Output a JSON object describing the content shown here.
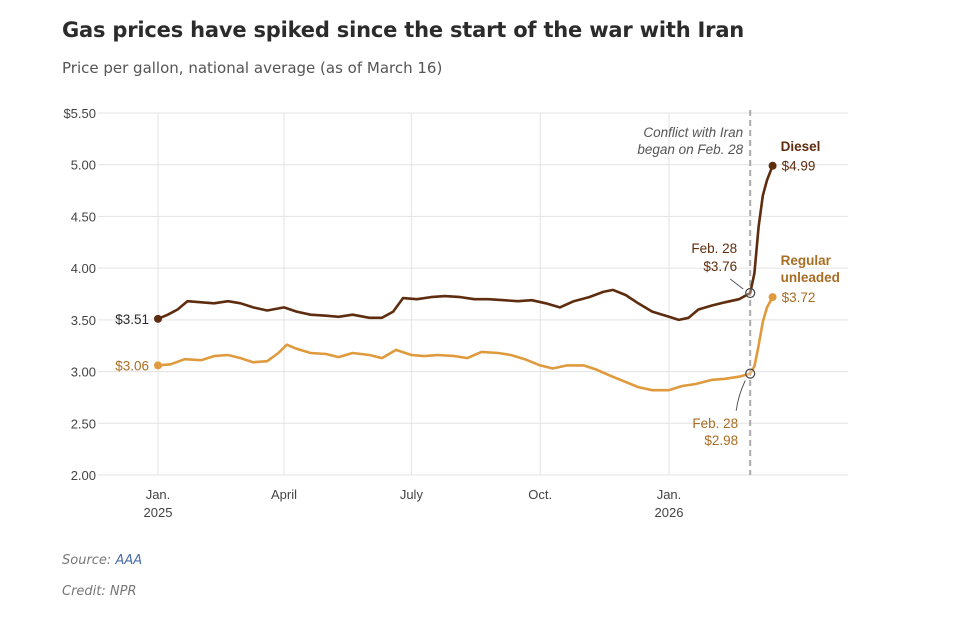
{
  "header": {
    "title": "Gas prices have spiked since the start of the war with Iran",
    "subtitle": "Price per gallon, national average (as of March 16)"
  },
  "footer": {
    "source_label": "Source:",
    "source_name": "AAA",
    "credit": "Credit: NPR"
  },
  "colors": {
    "diesel": "#5e2c0e",
    "regular": "#e09a3e",
    "regular_text": "#a86d23",
    "grid": "#e3e3e3",
    "marker_line": "#aaaaaa"
  },
  "chart_data": {
    "type": "line",
    "title": "Gas prices have spiked since the start of the war with Iran",
    "subtitle": "Price per gallon, national average (as of March 16)",
    "xlabel": "",
    "ylabel": "",
    "ylim": [
      2.0,
      5.5
    ],
    "xlim": [
      "2024-12-30",
      "2026-03-16"
    ],
    "y_ticks": [
      {
        "value": 5.5,
        "label": "$5.50"
      },
      {
        "value": 5.0,
        "label": "5.00"
      },
      {
        "value": 4.5,
        "label": "4.50"
      },
      {
        "value": 4.0,
        "label": "4.00"
      },
      {
        "value": 3.5,
        "label": "3.50"
      },
      {
        "value": 3.0,
        "label": "3.00"
      },
      {
        "value": 2.5,
        "label": "2.50"
      },
      {
        "value": 2.0,
        "label": "2.00"
      }
    ],
    "x_ticks": [
      {
        "date": "2025-01-01",
        "label": "Jan.",
        "sublabel": "2025"
      },
      {
        "date": "2025-04-01",
        "label": "April",
        "sublabel": ""
      },
      {
        "date": "2025-07-01",
        "label": "July",
        "sublabel": ""
      },
      {
        "date": "2025-10-01",
        "label": "Oct.",
        "sublabel": ""
      },
      {
        "date": "2026-01-01",
        "label": "Jan.",
        "sublabel": "2026"
      }
    ],
    "grid": true,
    "series": [
      {
        "name": "Diesel",
        "color": "#5e2c0e",
        "start_label": "$3.51",
        "end_label": "$4.99",
        "points": [
          [
            "2025-01-01",
            3.51
          ],
          [
            "2025-01-08",
            3.55
          ],
          [
            "2025-01-15",
            3.6
          ],
          [
            "2025-01-22",
            3.68
          ],
          [
            "2025-02-01",
            3.67
          ],
          [
            "2025-02-10",
            3.66
          ],
          [
            "2025-02-20",
            3.68
          ],
          [
            "2025-03-01",
            3.66
          ],
          [
            "2025-03-10",
            3.62
          ],
          [
            "2025-03-20",
            3.59
          ],
          [
            "2025-04-01",
            3.62
          ],
          [
            "2025-04-10",
            3.58
          ],
          [
            "2025-04-20",
            3.55
          ],
          [
            "2025-05-01",
            3.54
          ],
          [
            "2025-05-10",
            3.53
          ],
          [
            "2025-05-20",
            3.55
          ],
          [
            "2025-06-01",
            3.52
          ],
          [
            "2025-06-10",
            3.52
          ],
          [
            "2025-06-18",
            3.58
          ],
          [
            "2025-06-25",
            3.71
          ],
          [
            "2025-07-05",
            3.7
          ],
          [
            "2025-07-15",
            3.72
          ],
          [
            "2025-07-25",
            3.73
          ],
          [
            "2025-08-05",
            3.72
          ],
          [
            "2025-08-15",
            3.7
          ],
          [
            "2025-08-25",
            3.7
          ],
          [
            "2025-09-05",
            3.69
          ],
          [
            "2025-09-15",
            3.68
          ],
          [
            "2025-09-25",
            3.69
          ],
          [
            "2025-10-05",
            3.66
          ],
          [
            "2025-10-15",
            3.62
          ],
          [
            "2025-10-25",
            3.68
          ],
          [
            "2025-11-05",
            3.72
          ],
          [
            "2025-11-15",
            3.77
          ],
          [
            "2025-11-22",
            3.79
          ],
          [
            "2025-12-01",
            3.74
          ],
          [
            "2025-12-10",
            3.66
          ],
          [
            "2025-12-20",
            3.58
          ],
          [
            "2026-01-01",
            3.53
          ],
          [
            "2026-01-08",
            3.5
          ],
          [
            "2026-01-15",
            3.52
          ],
          [
            "2026-01-22",
            3.6
          ],
          [
            "2026-02-01",
            3.64
          ],
          [
            "2026-02-10",
            3.67
          ],
          [
            "2026-02-20",
            3.7
          ],
          [
            "2026-02-28",
            3.76
          ],
          [
            "2026-03-03",
            3.95
          ],
          [
            "2026-03-06",
            4.4
          ],
          [
            "2026-03-09",
            4.7
          ],
          [
            "2026-03-12",
            4.85
          ],
          [
            "2026-03-16",
            4.99
          ]
        ]
      },
      {
        "name": "Regular unleaded",
        "color": "#e09a3e",
        "start_label": "$3.06",
        "end_label": "$3.72",
        "points": [
          [
            "2025-01-01",
            3.06
          ],
          [
            "2025-01-10",
            3.07
          ],
          [
            "2025-01-20",
            3.12
          ],
          [
            "2025-02-01",
            3.11
          ],
          [
            "2025-02-10",
            3.15
          ],
          [
            "2025-02-20",
            3.16
          ],
          [
            "2025-03-01",
            3.13
          ],
          [
            "2025-03-10",
            3.09
          ],
          [
            "2025-03-20",
            3.1
          ],
          [
            "2025-03-28",
            3.18
          ],
          [
            "2025-04-03",
            3.26
          ],
          [
            "2025-04-10",
            3.22
          ],
          [
            "2025-04-20",
            3.18
          ],
          [
            "2025-05-01",
            3.17
          ],
          [
            "2025-05-10",
            3.14
          ],
          [
            "2025-05-20",
            3.18
          ],
          [
            "2025-06-01",
            3.16
          ],
          [
            "2025-06-10",
            3.13
          ],
          [
            "2025-06-20",
            3.21
          ],
          [
            "2025-07-01",
            3.16
          ],
          [
            "2025-07-10",
            3.15
          ],
          [
            "2025-07-20",
            3.16
          ],
          [
            "2025-08-01",
            3.15
          ],
          [
            "2025-08-10",
            3.13
          ],
          [
            "2025-08-20",
            3.19
          ],
          [
            "2025-09-01",
            3.18
          ],
          [
            "2025-09-10",
            3.16
          ],
          [
            "2025-09-20",
            3.12
          ],
          [
            "2025-10-01",
            3.06
          ],
          [
            "2025-10-10",
            3.03
          ],
          [
            "2025-10-20",
            3.06
          ],
          [
            "2025-11-01",
            3.06
          ],
          [
            "2025-11-10",
            3.02
          ],
          [
            "2025-11-20",
            2.96
          ],
          [
            "2025-12-01",
            2.9
          ],
          [
            "2025-12-10",
            2.85
          ],
          [
            "2025-12-20",
            2.82
          ],
          [
            "2026-01-01",
            2.82
          ],
          [
            "2026-01-10",
            2.86
          ],
          [
            "2026-01-20",
            2.88
          ],
          [
            "2026-02-01",
            2.92
          ],
          [
            "2026-02-10",
            2.93
          ],
          [
            "2026-02-20",
            2.95
          ],
          [
            "2026-02-28",
            2.98
          ],
          [
            "2026-03-03",
            3.05
          ],
          [
            "2026-03-06",
            3.25
          ],
          [
            "2026-03-09",
            3.48
          ],
          [
            "2026-03-12",
            3.62
          ],
          [
            "2026-03-16",
            3.72
          ]
        ]
      }
    ],
    "annotations": {
      "event": {
        "date": "2026-02-28",
        "line1": "Conflict with Iran",
        "line2": "began on Feb. 28"
      },
      "diesel_callout": {
        "line1": "Feb. 28",
        "line2": "$3.76"
      },
      "regular_callout": {
        "line1": "Feb. 28",
        "line2": "$2.98"
      },
      "diesel_legend": "Diesel",
      "regular_legend_1": "Regular",
      "regular_legend_2": "unleaded"
    }
  }
}
